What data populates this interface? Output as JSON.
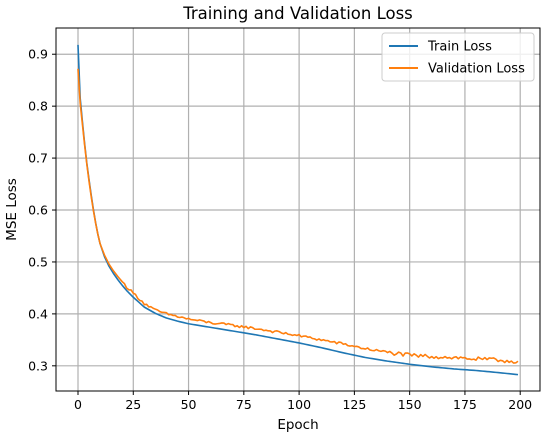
{
  "chart_data": {
    "type": "line",
    "title": "Training and Validation Loss",
    "xlabel": "Epoch",
    "ylabel": "MSE Loss",
    "xlim": [
      -9.95,
      208.95
    ],
    "ylim": [
      0.2515,
      0.9505
    ],
    "x_ticks": [
      0,
      25,
      50,
      75,
      100,
      125,
      150,
      175,
      200
    ],
    "y_ticks": [
      0.3,
      0.4,
      0.5,
      0.6,
      0.7,
      0.8,
      0.9
    ],
    "grid": true,
    "legend_position": "top-right",
    "x_range": [
      0,
      199
    ],
    "series": [
      {
        "name": "Train Loss",
        "color": "#1f77b4",
        "anchor_x": [
          0,
          1,
          2,
          3,
          4,
          5,
          6,
          7,
          8,
          9,
          10,
          12,
          14,
          16,
          18,
          20,
          22,
          25,
          30,
          35,
          40,
          45,
          50,
          60,
          70,
          80,
          90,
          100,
          110,
          120,
          130,
          140,
          150,
          160,
          170,
          180,
          190,
          199
        ],
        "anchor_y": [
          0.918,
          0.815,
          0.77,
          0.728,
          0.69,
          0.658,
          0.628,
          0.6,
          0.575,
          0.553,
          0.535,
          0.51,
          0.492,
          0.478,
          0.466,
          0.455,
          0.445,
          0.432,
          0.413,
          0.401,
          0.392,
          0.386,
          0.381,
          0.374,
          0.367,
          0.36,
          0.352,
          0.344,
          0.335,
          0.325,
          0.316,
          0.309,
          0.303,
          0.298,
          0.294,
          0.291,
          0.287,
          0.283
        ]
      },
      {
        "name": "Validation Loss",
        "color": "#ff7f0e",
        "noise": 0.0025,
        "anchor_x": [
          0,
          1,
          2,
          3,
          4,
          5,
          6,
          7,
          8,
          9,
          10,
          12,
          14,
          16,
          18,
          20,
          22,
          25,
          30,
          35,
          40,
          45,
          50,
          60,
          70,
          80,
          90,
          100,
          110,
          120,
          130,
          140,
          150,
          160,
          170,
          180,
          190,
          199
        ],
        "anchor_y": [
          0.872,
          0.805,
          0.765,
          0.725,
          0.688,
          0.655,
          0.625,
          0.598,
          0.574,
          0.553,
          0.535,
          0.513,
          0.496,
          0.483,
          0.472,
          0.462,
          0.452,
          0.44,
          0.42,
          0.407,
          0.4,
          0.395,
          0.39,
          0.383,
          0.378,
          0.372,
          0.365,
          0.358,
          0.35,
          0.342,
          0.333,
          0.326,
          0.32,
          0.318,
          0.316,
          0.313,
          0.311,
          0.308
        ]
      }
    ]
  }
}
